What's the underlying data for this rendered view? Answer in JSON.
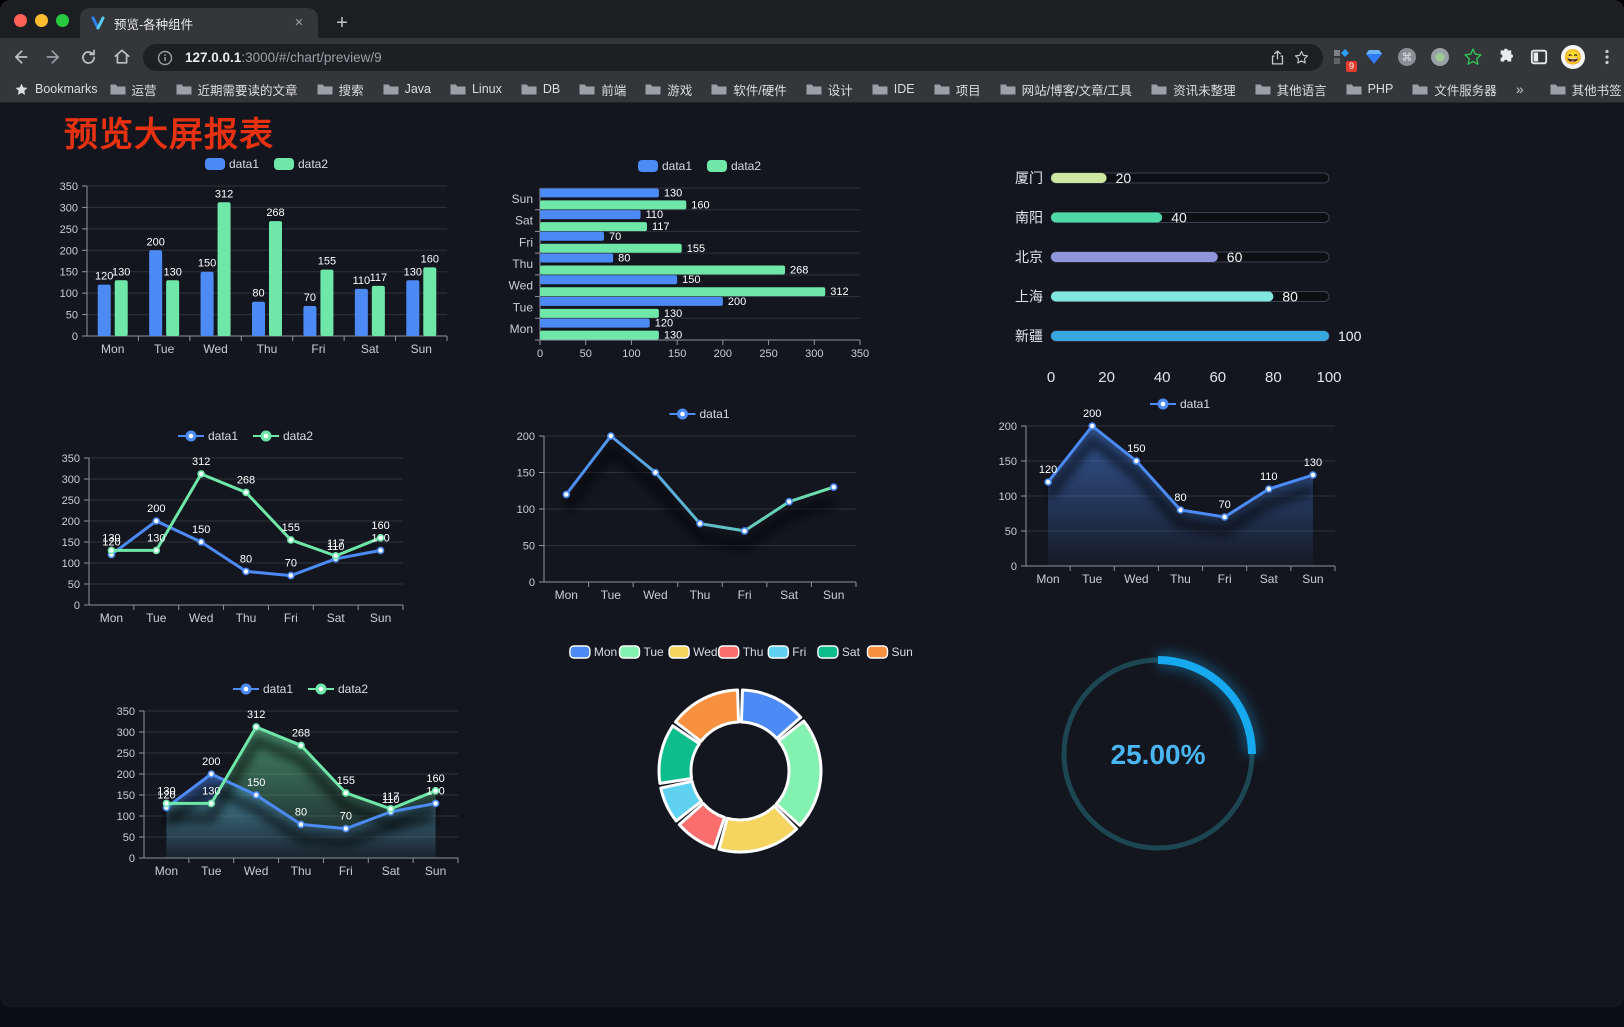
{
  "browser": {
    "tab_title": "预览-各种组件",
    "url_host": "127.0.0.1",
    "url_rest": ":3000/#/chart/preview/9",
    "extension_badge": "9",
    "bookmarks_label": "Bookmarks",
    "bookmarks": [
      "运营",
      "近期需要读的文章",
      "搜索",
      "Java",
      "Linux",
      "DB",
      "前端",
      "游戏",
      "软件/硬件",
      "设计",
      "IDE",
      "项目",
      "网站/博客/文章/工具",
      "资讯未整理",
      "其他语言",
      "PHP",
      "文件服务器"
    ],
    "bookmarks_overflow": "»",
    "other_bookmarks": "其他书签"
  },
  "page": {
    "title": "预览大屏报表",
    "title_color": "#e73111"
  },
  "colors": {
    "data1": "#4C8BF5",
    "data2": "#6EE7A8",
    "axis_text": "#c9cdd8",
    "axis_line": "#9094a0"
  },
  "chart_data": [
    {
      "id": "bar1",
      "type": "bar",
      "categories": [
        "Mon",
        "Tue",
        "Wed",
        "Thu",
        "Fri",
        "Sat",
        "Sun"
      ],
      "series": [
        {
          "name": "data1",
          "color": "#4C8BF5",
          "values": [
            120,
            200,
            150,
            80,
            70,
            110,
            130
          ]
        },
        {
          "name": "data2",
          "color": "#6EE7A8",
          "values": [
            130,
            130,
            312,
            268,
            155,
            117,
            160
          ]
        }
      ],
      "ylim": [
        0,
        350
      ],
      "ytick": 50,
      "labels": true,
      "legend_position": "top"
    },
    {
      "id": "hbar1",
      "type": "bar-horizontal",
      "categories": [
        "Mon",
        "Tue",
        "Wed",
        "Thu",
        "Fri",
        "Sat",
        "Sun"
      ],
      "series": [
        {
          "name": "data1",
          "color": "#4C8BF5",
          "values": [
            120,
            200,
            150,
            80,
            70,
            110,
            130
          ]
        },
        {
          "name": "data2",
          "color": "#6EE7A8",
          "values": [
            130,
            130,
            312,
            268,
            155,
            117,
            160
          ]
        }
      ],
      "xlim": [
        0,
        350
      ],
      "xtick": 50,
      "labels": true,
      "legend_position": "top"
    },
    {
      "id": "progress1",
      "type": "progress",
      "rows": [
        {
          "label": "厦门",
          "value": 20,
          "color": "#CDE8A0"
        },
        {
          "label": "南阳",
          "value": 40,
          "color": "#4ED9A9"
        },
        {
          "label": "北京",
          "value": 60,
          "color": "#8F96DC"
        },
        {
          "label": "上海",
          "value": 80,
          "color": "#7FE6E0"
        },
        {
          "label": "新疆",
          "value": 100,
          "color": "#38A7DE"
        }
      ],
      "xlim": [
        0,
        100
      ],
      "xticks": [
        0,
        20,
        40,
        60,
        80,
        100
      ]
    },
    {
      "id": "line2",
      "type": "line",
      "categories": [
        "Mon",
        "Tue",
        "Wed",
        "Thu",
        "Fri",
        "Sat",
        "Sun"
      ],
      "series": [
        {
          "name": "data1",
          "color": "#4C8BF5",
          "values": [
            120,
            200,
            150,
            80,
            70,
            110,
            130
          ]
        },
        {
          "name": "data2",
          "color": "#6EE7A8",
          "values": [
            130,
            130,
            312,
            268,
            155,
            117,
            160
          ]
        }
      ],
      "ylim": [
        0,
        350
      ],
      "ytick": 50,
      "labels": true,
      "legend_position": "top"
    },
    {
      "id": "line1",
      "type": "line",
      "categories": [
        "Mon",
        "Tue",
        "Wed",
        "Thu",
        "Fri",
        "Sat",
        "Sun"
      ],
      "series": [
        {
          "name": "data1",
          "color": "#4C8BF5",
          "gradient": [
            "#4C8BF5",
            "#6EE7A8"
          ],
          "shadow": true,
          "values": [
            120,
            200,
            150,
            80,
            70,
            110,
            130
          ]
        }
      ],
      "ylim": [
        0,
        200
      ],
      "ytick": 50,
      "labels": false,
      "legend_position": "top"
    },
    {
      "id": "area1",
      "type": "line",
      "categories": [
        "Mon",
        "Tue",
        "Wed",
        "Thu",
        "Fri",
        "Sat",
        "Sun"
      ],
      "series": [
        {
          "name": "data1",
          "color": "#4C8BF5",
          "area": true,
          "shadow": true,
          "values": [
            120,
            200,
            150,
            80,
            70,
            110,
            130
          ]
        }
      ],
      "ylim": [
        0,
        200
      ],
      "ytick": 50,
      "labels": true,
      "legend_position": "top"
    },
    {
      "id": "area2",
      "type": "line",
      "categories": [
        "Mon",
        "Tue",
        "Wed",
        "Thu",
        "Fri",
        "Sat",
        "Sun"
      ],
      "series": [
        {
          "name": "data1",
          "color": "#4C8BF5",
          "area": true,
          "shadow": true,
          "values": [
            120,
            200,
            150,
            80,
            70,
            110,
            130
          ]
        },
        {
          "name": "data2",
          "color": "#6EE7A8",
          "area": true,
          "shadow": true,
          "values": [
            130,
            130,
            312,
            268,
            155,
            117,
            160
          ]
        }
      ],
      "ylim": [
        0,
        350
      ],
      "ytick": 50,
      "labels": true,
      "legend_position": "top"
    },
    {
      "id": "pie1",
      "type": "pie",
      "items": [
        {
          "label": "Mon",
          "value": 120,
          "color": "#4C8BF5"
        },
        {
          "label": "Tue",
          "value": 200,
          "color": "#83F2B0"
        },
        {
          "label": "Wed",
          "value": 150,
          "color": "#F5D55F"
        },
        {
          "label": "Thu",
          "value": 80,
          "color": "#FB6E6E"
        },
        {
          "label": "Fri",
          "value": 70,
          "color": "#5FD2F2"
        },
        {
          "label": "Sat",
          "value": 110,
          "color": "#0EBD8C"
        },
        {
          "label": "Sun",
          "value": 130,
          "color": "#F7913F"
        }
      ],
      "legend_position": "top",
      "donut": true
    },
    {
      "id": "gauge1",
      "type": "gauge",
      "value": 25,
      "label": "25.00%",
      "color": "#17A9EF",
      "track": "#1C4652",
      "text_color": "#49B5F2"
    }
  ]
}
